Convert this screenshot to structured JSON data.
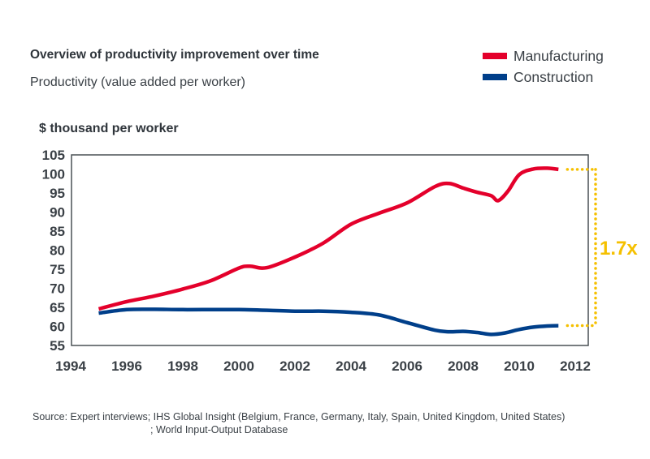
{
  "header": {
    "title": "Overview of productivity improvement over time",
    "subtitle": "Productivity (value added per worker)",
    "unit_label": "$ thousand per worker"
  },
  "legend": [
    {
      "label": "Manufacturing",
      "color": "#E4002B"
    },
    {
      "label": "Construction",
      "color": "#003F8A"
    }
  ],
  "annotation": {
    "label": "1.7x",
    "color": "#F5C000"
  },
  "source": {
    "line1": "Source: Expert interviews; IHS Global Insight (Belgium, France, Germany, Italy, Spain, United Kingdom, United States)",
    "line2": "; World Input-Output Database"
  },
  "chart_data": {
    "type": "line",
    "title": "Overview of productivity improvement over time",
    "subtitle": "Productivity (value added per worker)",
    "xlabel": "",
    "ylabel": "$ thousand per worker",
    "xlim": [
      1994,
      2012
    ],
    "ylim": [
      55,
      105
    ],
    "xticks": [
      "1994",
      "1996",
      "1998",
      "2000",
      "2002",
      "2004",
      "2006",
      "2008",
      "2010",
      "2012"
    ],
    "yticks": [
      "55",
      "60",
      "65",
      "70",
      "75",
      "80",
      "85",
      "90",
      "95",
      "100",
      "105"
    ],
    "grid": false,
    "legend_position": "top-right",
    "annotation": {
      "text": "1.7x",
      "from_series": "Construction",
      "to_series": "Manufacturing",
      "at_x": 2011.4
    },
    "series": [
      {
        "name": "Manufacturing",
        "color": "#E4002B",
        "x": [
          1995,
          1996,
          1997,
          1998,
          1999,
          2000,
          2000.4,
          2001,
          2002,
          2003,
          2004,
          2005,
          2006,
          2007,
          2007.5,
          2008,
          2008.5,
          2009,
          2009.25,
          2009.6,
          2010,
          2010.5,
          2011,
          2011.4
        ],
        "y": [
          64.6,
          66.5,
          68.0,
          69.8,
          72.0,
          75.3,
          75.8,
          75.4,
          78.2,
          81.8,
          86.8,
          89.7,
          92.4,
          96.7,
          97.5,
          96.3,
          95.2,
          94.3,
          93.0,
          95.5,
          99.8,
          101.3,
          101.5,
          101.2
        ]
      },
      {
        "name": "Construction",
        "color": "#003F8A",
        "x": [
          1995,
          1996,
          1997,
          1998,
          2000,
          2002,
          2003,
          2004,
          2005,
          2006,
          2007,
          2007.5,
          2008,
          2008.5,
          2009,
          2009.5,
          2010,
          2010.5,
          2011,
          2011.4
        ],
        "y": [
          63.5,
          64.4,
          64.5,
          64.4,
          64.4,
          64.0,
          64.0,
          63.7,
          63.0,
          61.0,
          59.0,
          58.6,
          58.7,
          58.4,
          57.9,
          58.3,
          59.2,
          59.8,
          60.1,
          60.2
        ]
      }
    ]
  }
}
